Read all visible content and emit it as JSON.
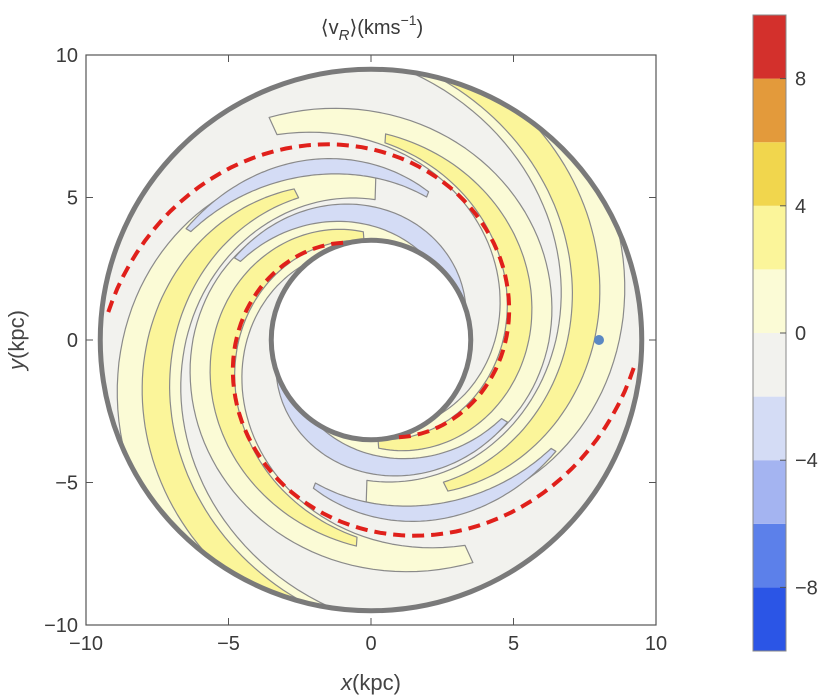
{
  "chart_data": {
    "type": "contour",
    "title_prefix": "⟨v",
    "title_sub": "R",
    "title_mid": "⟩(kms",
    "title_sup": "−1",
    "title_suffix": ")",
    "xlabel_italic": "x",
    "xlabel_unit": "(kpc)",
    "ylabel_italic": "y",
    "ylabel_unit": "(kpc)",
    "xlim": [
      -10,
      10
    ],
    "ylim": [
      -10,
      10
    ],
    "x_ticks": [
      -10,
      -5,
      0,
      5,
      10
    ],
    "y_ticks": [
      -10,
      -5,
      0,
      5,
      10
    ],
    "x_tick_labels": [
      "−10",
      "−5",
      "0",
      "5",
      "10"
    ],
    "y_tick_labels": [
      "−10",
      "−5",
      "0",
      "5",
      "10"
    ],
    "annulus": {
      "inner_radius_kpc": 3.5,
      "outer_radius_kpc": 9.5
    },
    "spiral_arms": {
      "count": 2,
      "pitch_angle_deg": 12.5,
      "color": "#e0201b",
      "style": "dashed"
    },
    "sun_marker": {
      "x": 8.0,
      "y": 0.0,
      "color": "#5b88c3"
    },
    "contour_band_colors": [
      "#fbfbd6",
      "#fbf59a",
      "#f2f2ee",
      "#d4dcf5"
    ],
    "colorbar": {
      "range": [
        -10,
        10
      ],
      "levels": [
        -10,
        -8,
        -6,
        -4,
        -2,
        0,
        2,
        4,
        6,
        8,
        10
      ],
      "colors": [
        "#2b55e6",
        "#5c80ea",
        "#a4b4f1",
        "#d4dcf5",
        "#f2f2ee",
        "#fbfbd6",
        "#fbf59a",
        "#f1d64d",
        "#e39a3b",
        "#d3302c"
      ],
      "tick_values": [
        8,
        4,
        0,
        -4,
        -8
      ],
      "tick_labels": [
        "8",
        "4",
        "0",
        "−4",
        "−8"
      ]
    }
  }
}
